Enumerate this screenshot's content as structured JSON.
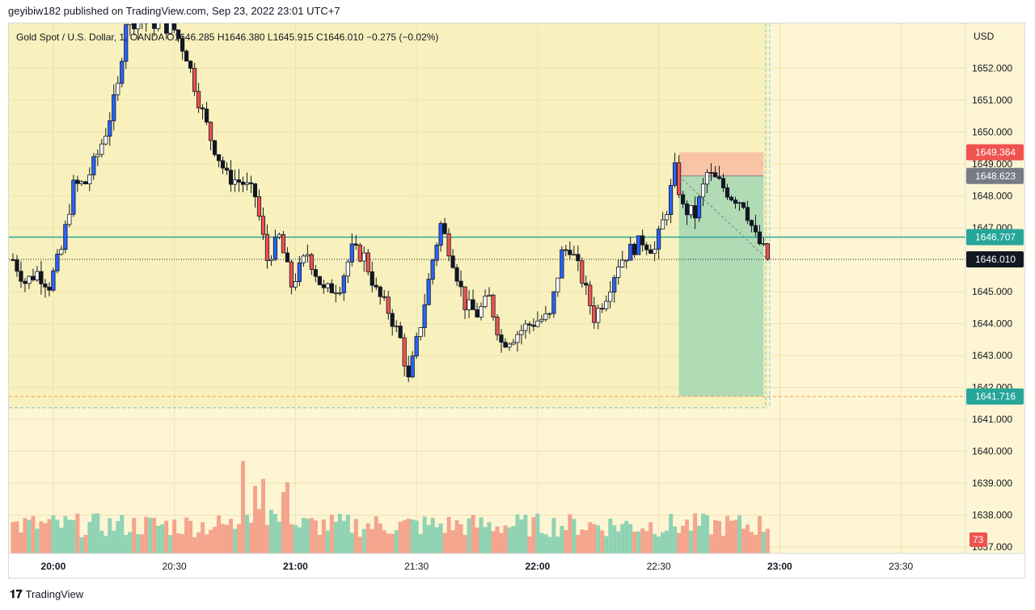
{
  "header": {
    "published": "geyibiw182 published on TradingView.com, Sep 23, 2022 23:01 UTC+7"
  },
  "legend": {
    "symbol": "Gold Spot / U.S. Dollar, 1, OANDA",
    "open": "O1646.285",
    "high": "H1646.380",
    "low": "L1645.915",
    "close": "C1646.010",
    "change": "−0.275 (−0.02%)"
  },
  "footer": {
    "brand": "TradingView",
    "logo": "tradingview-logo-icon"
  },
  "colors": {
    "up": "#2962ff",
    "down": "#ef5350",
    "up_body_hollow": "#ffffff",
    "wick": "#131722",
    "vol_up": "#8fd3b4",
    "vol_down": "#f5a48d",
    "teal": "#26a69a",
    "bg": "#fdf5d3"
  },
  "chart_data": {
    "type": "candlestick",
    "currency": "USD",
    "ylim": [
      1636.8,
      1653.4
    ],
    "y_ticks": [
      1652,
      1651,
      1650,
      1649,
      1648,
      1647,
      1645,
      1644,
      1643,
      1642,
      1641,
      1640,
      1639,
      1638,
      1637
    ],
    "x_ticks": [
      {
        "t": 0,
        "label": "20:00"
      },
      {
        "t": 30,
        "label": "20:30"
      },
      {
        "t": 60,
        "label": "21:00"
      },
      {
        "t": 90,
        "label": "21:30"
      },
      {
        "t": 120,
        "label": "22:00"
      },
      {
        "t": 150,
        "label": "22:30"
      },
      {
        "t": 180,
        "label": "23:00"
      },
      {
        "t": 210,
        "label": "23:30"
      }
    ],
    "t_range": [
      -11,
      226
    ],
    "price_labels": [
      {
        "value": 1649.364,
        "text": "1649.364",
        "color": "#ef5350"
      },
      {
        "value": 1648.623,
        "text": "1648.623",
        "color": "#787b86"
      },
      {
        "value": 1646.707,
        "text": "1646.707",
        "color": "#26a69a"
      },
      {
        "value": 1646.01,
        "text": "1646.010",
        "color": "#131722"
      },
      {
        "value": 1641.716,
        "text": "1641.716",
        "color": "#26a69a"
      }
    ],
    "volume_label": {
      "text": "73",
      "color": "#ef5350"
    },
    "horizontal_line": 1646.707,
    "last_price": 1646.01,
    "dashed_level": 1641.716,
    "position": {
      "t_start": 155,
      "t_end": 176,
      "entry": 1648.623,
      "stop": 1649.364,
      "target": 1641.716
    },
    "key_points": [
      {
        "t": -10,
        "p": 1646.0
      },
      {
        "t": -7,
        "p": 1645.3
      },
      {
        "t": -4,
        "p": 1645.6
      },
      {
        "t": -1,
        "p": 1645.2
      },
      {
        "t": 2,
        "p": 1646.3
      },
      {
        "t": 5,
        "p": 1648.3
      },
      {
        "t": 8,
        "p": 1648.4
      },
      {
        "t": 11,
        "p": 1649.3
      },
      {
        "t": 13,
        "p": 1650.0
      },
      {
        "t": 16,
        "p": 1651.4
      },
      {
        "t": 18,
        "p": 1653.5
      },
      {
        "t": 26,
        "p": 1653.4
      },
      {
        "t": 30,
        "p": 1653.2
      },
      {
        "t": 33,
        "p": 1652.4
      },
      {
        "t": 36,
        "p": 1651.0
      },
      {
        "t": 39,
        "p": 1649.8
      },
      {
        "t": 43,
        "p": 1648.6
      },
      {
        "t": 47,
        "p": 1648.4
      },
      {
        "t": 50,
        "p": 1648.0
      },
      {
        "t": 53,
        "p": 1646.0
      },
      {
        "t": 56,
        "p": 1646.7
      },
      {
        "t": 59,
        "p": 1645.2
      },
      {
        "t": 63,
        "p": 1646.2
      },
      {
        "t": 67,
        "p": 1645.0
      },
      {
        "t": 71,
        "p": 1645.2
      },
      {
        "t": 74,
        "p": 1646.3
      },
      {
        "t": 77,
        "p": 1646.1
      },
      {
        "t": 80,
        "p": 1645.0
      },
      {
        "t": 83,
        "p": 1644.4
      },
      {
        "t": 86,
        "p": 1643.5
      },
      {
        "t": 88,
        "p": 1642.2
      },
      {
        "t": 91,
        "p": 1644.0
      },
      {
        "t": 94,
        "p": 1646.0
      },
      {
        "t": 96,
        "p": 1647.1
      },
      {
        "t": 99,
        "p": 1646.0
      },
      {
        "t": 102,
        "p": 1644.6
      },
      {
        "t": 105,
        "p": 1644.3
      },
      {
        "t": 108,
        "p": 1644.8
      },
      {
        "t": 111,
        "p": 1643.4
      },
      {
        "t": 114,
        "p": 1643.6
      },
      {
        "t": 117,
        "p": 1643.9
      },
      {
        "t": 120,
        "p": 1644.1
      },
      {
        "t": 123,
        "p": 1644.2
      },
      {
        "t": 126,
        "p": 1646.2
      },
      {
        "t": 128,
        "p": 1646.4
      },
      {
        "t": 131,
        "p": 1645.4
      },
      {
        "t": 134,
        "p": 1644.2
      },
      {
        "t": 137,
        "p": 1644.9
      },
      {
        "t": 140,
        "p": 1645.9
      },
      {
        "t": 143,
        "p": 1646.3
      },
      {
        "t": 146,
        "p": 1646.6
      },
      {
        "t": 149,
        "p": 1646.3
      },
      {
        "t": 152,
        "p": 1647.6
      },
      {
        "t": 154,
        "p": 1648.8
      },
      {
        "t": 156,
        "p": 1647.6
      },
      {
        "t": 159,
        "p": 1647.4
      },
      {
        "t": 162,
        "p": 1648.7
      },
      {
        "t": 165,
        "p": 1648.4
      },
      {
        "t": 168,
        "p": 1648.0
      },
      {
        "t": 171,
        "p": 1647.8
      },
      {
        "t": 174,
        "p": 1646.7
      },
      {
        "t": 176,
        "p": 1646.3
      },
      {
        "t": 177,
        "p": 1646.01
      }
    ]
  }
}
